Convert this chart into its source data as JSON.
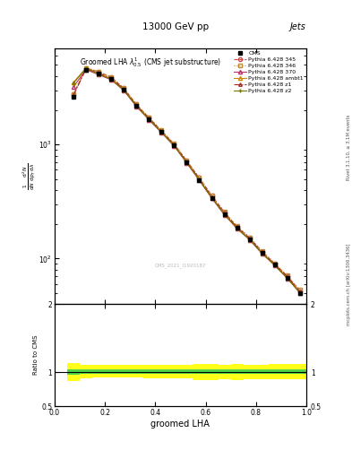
{
  "title_top": "13000 GeV pp",
  "title_right": "Jets",
  "plot_title": "Groomed LHA $\\lambda^{1}_{0.5}$ (CMS jet substructure)",
  "right_label": "Rivet 3.1.10, ≥ 3.1M events",
  "arxiv_label": "mcplots.cern.ch [arXiv:1306.3436]",
  "watermark": "CMS_2021_I1920187",
  "xlabel": "groomed LHA",
  "ylabel_ratio": "Ratio to CMS",
  "cms_x": [
    0.075,
    0.125,
    0.175,
    0.225,
    0.275,
    0.325,
    0.375,
    0.425,
    0.475,
    0.525,
    0.575,
    0.625,
    0.675,
    0.725,
    0.775,
    0.825,
    0.875,
    0.925,
    0.975
  ],
  "cms_y": [
    2600,
    4500,
    4200,
    3800,
    3050,
    2200,
    1680,
    1290,
    990,
    700,
    490,
    340,
    245,
    185,
    148,
    112,
    88,
    68,
    50
  ],
  "p345_y": [
    2750,
    4700,
    4350,
    3900,
    3120,
    2250,
    1720,
    1320,
    1010,
    720,
    510,
    355,
    255,
    190,
    152,
    115,
    90,
    70,
    52
  ],
  "p346_y": [
    2780,
    4720,
    4370,
    3920,
    3140,
    2260,
    1730,
    1330,
    1020,
    725,
    512,
    357,
    257,
    192,
    154,
    116,
    91,
    71,
    53
  ],
  "p370_y": [
    3200,
    4550,
    4100,
    3700,
    2980,
    2160,
    1650,
    1270,
    970,
    690,
    485,
    337,
    242,
    183,
    146,
    110,
    87,
    67,
    50
  ],
  "pambt1_y": [
    3500,
    4700,
    4200,
    3780,
    3040,
    2200,
    1680,
    1290,
    988,
    703,
    494,
    343,
    246,
    185,
    148,
    112,
    88,
    68,
    51
  ],
  "pz1_y": [
    2700,
    4600,
    4250,
    3820,
    3060,
    2210,
    1690,
    1300,
    995,
    708,
    498,
    346,
    249,
    188,
    150,
    113,
    89,
    69,
    51
  ],
  "pz2_y": [
    3450,
    4660,
    4150,
    3740,
    3010,
    2180,
    1665,
    1280,
    980,
    697,
    490,
    340,
    244,
    184,
    147,
    111,
    87,
    67,
    50
  ],
  "ratio_x_edges": [
    0.05,
    0.1,
    0.15,
    0.2,
    0.25,
    0.3,
    0.35,
    0.4,
    0.45,
    0.5,
    0.55,
    0.6,
    0.65,
    0.7,
    0.75,
    0.8,
    0.85,
    0.9,
    0.95,
    1.0
  ],
  "ratio_green_lo": [
    0.96,
    0.97,
    0.97,
    0.97,
    0.97,
    0.97,
    0.97,
    0.97,
    0.97,
    0.97,
    0.97,
    0.97,
    0.97,
    0.97,
    0.97,
    0.97,
    0.97,
    0.97,
    0.97
  ],
  "ratio_green_hi": [
    1.04,
    1.04,
    1.04,
    1.04,
    1.04,
    1.04,
    1.04,
    1.04,
    1.04,
    1.04,
    1.04,
    1.04,
    1.04,
    1.04,
    1.04,
    1.04,
    1.04,
    1.04,
    1.04
  ],
  "ratio_yellow_lo": [
    0.87,
    0.91,
    0.92,
    0.92,
    0.92,
    0.92,
    0.91,
    0.91,
    0.91,
    0.91,
    0.88,
    0.88,
    0.9,
    0.88,
    0.9,
    0.9,
    0.9,
    0.9,
    0.9
  ],
  "ratio_yellow_hi": [
    1.13,
    1.1,
    1.1,
    1.1,
    1.1,
    1.1,
    1.1,
    1.1,
    1.1,
    1.1,
    1.12,
    1.12,
    1.1,
    1.12,
    1.1,
    1.1,
    1.12,
    1.12,
    1.12
  ],
  "color_cms": "#000000",
  "color_345": "#cc4444",
  "color_346": "#bb8833",
  "color_370": "#bb3366",
  "color_ambt1": "#cc8800",
  "color_z1": "#aa2222",
  "color_z2": "#777700",
  "xlim": [
    0,
    1
  ],
  "ylim_main": [
    40,
    7000
  ],
  "ylim_ratio": [
    0.5,
    2.0
  ],
  "yticks_ratio": [
    0.5,
    1.0,
    2.0
  ],
  "ytick_labels_ratio": [
    "0.5",
    "1",
    "2"
  ]
}
